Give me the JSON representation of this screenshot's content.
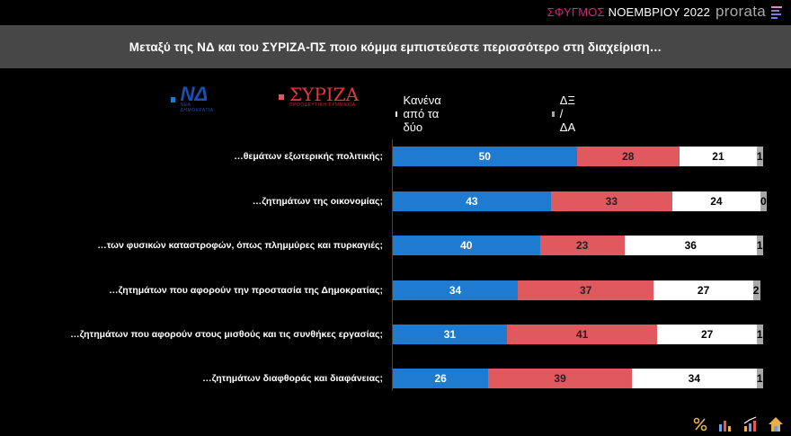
{
  "header": {
    "survey_accent": "ΣΦΥΓΜΟΣ",
    "survey_rest": " ΝΟΕΜΒΡΙΟΥ 2022",
    "brand": "prorata"
  },
  "title": "Μεταξύ της ΝΔ και του ΣΥΡΙΖΑ-ΠΣ ποιο κόμμα εμπιστεύεστε περισσότερο  στη διαχείριση…",
  "legend": {
    "nd_logo": "ΝΔ",
    "nd_sub": "ΝΕΑ ΔΗΜΟΚΡΑΤΙΑ",
    "syriza_logo": "ΣΥΡΙΖΑ",
    "syriza_sub": "ΠΡΟΟΔΕΥΤΙΚΗ ΣΥΜΜΑΧΙΑ",
    "none_label": "Κανένα από τα δύο",
    "dk_label": "ΔΞ / ΔΑ"
  },
  "colors": {
    "nd": "#1e7bd0",
    "syriza": "#e0595f",
    "none": "#ffffff",
    "dk": "#a9a9a9"
  },
  "chart_data": {
    "type": "bar",
    "orientation": "horizontal",
    "stacked": true,
    "title": "Μεταξύ της ΝΔ και του ΣΥΡΙΖΑ-ΠΣ ποιο κόμμα εμπιστεύεστε περισσότερο  στη διαχείριση…",
    "categories": [
      "…θεμάτων εξωτερικής πολιτικής;",
      "…ζητημάτων της οικονομίας;",
      "…των φυσικών καταστροφών, όπως πλημμύρες  και πυρκαγιές;",
      "…ζητημάτων που αφορούν την προστασία της Δημοκρατίας;",
      "…ζητημάτων που αφορούν στους μισθούς και τις συνθήκες εργασίας;",
      "…ζητημάτων διαφθοράς και διαφάνειας;"
    ],
    "series": [
      {
        "name": "ΝΔ",
        "values": [
          50,
          43,
          40,
          34,
          31,
          26
        ]
      },
      {
        "name": "ΣΥΡΙΖΑ",
        "values": [
          28,
          33,
          23,
          37,
          41,
          39
        ]
      },
      {
        "name": "Κανένα από τα δύο",
        "values": [
          21,
          24,
          36,
          27,
          27,
          34
        ]
      },
      {
        "name": "ΔΞ / ΔΑ",
        "values": [
          1,
          0,
          1,
          2,
          1,
          1
        ]
      }
    ],
    "xlim": [
      0,
      100
    ],
    "legend_position": "top"
  }
}
